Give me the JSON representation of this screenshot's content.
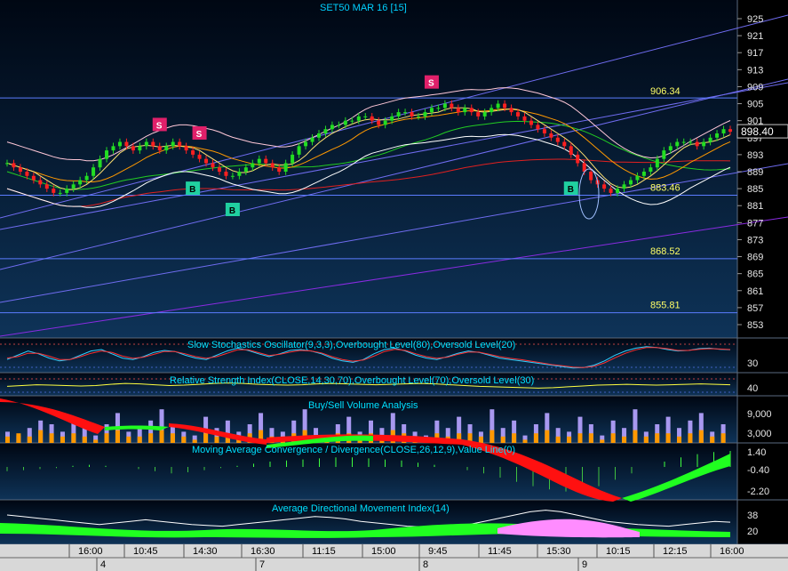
{
  "chart_data": [
    {
      "type": "candlestick",
      "title": "SET50 MAR 16   [15]",
      "last_price_label": "898.40",
      "ylim": [
        851,
        927
      ],
      "y_ticks": [
        "925",
        "921",
        "917",
        "913",
        "909",
        "905",
        "901",
        "897",
        "893",
        "889",
        "885",
        "881",
        "877",
        "873",
        "869",
        "865",
        "861",
        "857",
        "853"
      ],
      "closes": [
        891,
        890,
        889,
        888,
        887,
        886,
        885,
        884,
        884,
        885,
        886,
        887,
        888,
        890,
        892,
        894,
        895,
        896,
        895,
        894,
        895,
        896,
        895,
        894,
        895,
        896,
        895,
        894,
        893,
        892,
        891,
        890,
        889,
        888,
        888,
        889,
        890,
        891,
        892,
        891,
        890,
        889,
        891,
        893,
        895,
        896,
        897,
        898,
        899,
        900,
        900,
        901,
        901,
        902,
        902,
        901,
        900,
        901,
        902,
        903,
        903,
        902,
        902,
        903,
        904,
        904,
        905,
        904,
        903,
        904,
        903,
        902,
        903,
        904,
        905,
        904,
        903,
        902,
        901,
        900,
        899,
        898,
        897,
        896,
        895,
        893,
        891,
        889,
        887,
        886,
        885,
        884,
        885,
        886,
        887,
        888,
        889,
        890,
        892,
        894,
        895,
        896,
        896,
        896,
        895,
        896,
        897,
        898,
        899,
        898.4
      ],
      "horizontal_levels": [
        {
          "label": "906.34",
          "value": 906.34
        },
        {
          "label": "883.46",
          "value": 883.46
        },
        {
          "label": "868.52",
          "value": 868.52
        },
        {
          "label": "855.81",
          "value": 855.81
        }
      ],
      "signals": [
        {
          "label": "S",
          "index": 23
        },
        {
          "label": "S",
          "index": 29
        },
        {
          "label": "B",
          "index": 28
        },
        {
          "label": "B",
          "index": 34
        },
        {
          "label": "S",
          "index": 64
        },
        {
          "label": "B",
          "index": 85
        }
      ]
    },
    {
      "type": "line",
      "title": "Slow Stochastics Oscillator(9,3,3),Overbought Level(80),Oversold Level(20)",
      "y_ticks": [
        "30"
      ],
      "series": [
        {
          "values": [
            40,
            55,
            70,
            60,
            45,
            35,
            40,
            55,
            70,
            75,
            60,
            45,
            40,
            50,
            65,
            72,
            68,
            55,
            45,
            40,
            55,
            70,
            80,
            72,
            60,
            50,
            60,
            72,
            75,
            70,
            60,
            45,
            35,
            30,
            40,
            60,
            75,
            80,
            70,
            55,
            45,
            40,
            50,
            62,
            70,
            65,
            55,
            45,
            40,
            35,
            30,
            25,
            20,
            15,
            10,
            12,
            20,
            35,
            55,
            70,
            80,
            85,
            82,
            75,
            70,
            72,
            78,
            80,
            76,
            74
          ]
        },
        {
          "values": [
            45,
            50,
            62,
            62,
            52,
            40,
            40,
            50,
            62,
            70,
            65,
            52,
            44,
            48,
            58,
            68,
            68,
            60,
            50,
            44,
            50,
            62,
            74,
            74,
            64,
            54,
            58,
            66,
            72,
            70,
            63,
            50,
            40,
            34,
            38,
            52,
            68,
            76,
            72,
            60,
            50,
            44,
            48,
            58,
            66,
            66,
            58,
            50,
            44,
            40,
            34,
            28,
            22,
            18,
            13,
            12,
            16,
            28,
            46,
            62,
            74,
            82,
            82,
            78,
            72,
            72,
            76,
            78,
            77,
            75
          ]
        }
      ]
    },
    {
      "type": "line",
      "title": "Relative Strength Index(CLOSE,14,30,70),Overbought Level(70),Oversold Level(30)",
      "y_ticks": [
        "40"
      ],
      "series": [
        {
          "values": [
            48,
            50,
            52,
            51,
            50,
            49,
            50,
            53,
            55,
            54,
            52,
            50,
            51,
            53,
            55,
            56,
            55,
            53,
            52,
            51,
            52,
            54,
            55,
            54,
            53,
            52,
            53,
            54,
            55,
            54,
            52,
            50,
            48,
            47,
            46,
            45,
            44,
            45,
            47,
            49,
            51,
            52,
            53,
            52,
            51,
            52,
            53,
            54,
            53,
            52
          ]
        }
      ]
    },
    {
      "type": "bar",
      "title": "Buy/Sell Volume Analysis",
      "y_ticks": [
        "9,000",
        "3,000"
      ],
      "series": [
        {
          "name": "buy",
          "values": [
            3,
            2,
            4,
            6,
            5,
            3,
            7,
            4,
            2,
            5,
            8,
            3,
            4,
            6,
            9,
            5,
            3,
            2,
            7,
            4,
            6,
            3,
            5,
            8,
            4,
            3,
            6,
            9,
            4,
            2,
            5,
            7,
            3,
            6,
            4,
            8,
            5,
            3,
            2,
            6,
            4,
            7,
            5,
            3,
            9,
            4,
            6,
            2,
            5,
            8,
            4,
            3,
            7,
            5,
            2,
            6,
            4,
            9,
            3,
            5,
            7,
            4,
            6,
            8,
            3,
            5
          ]
        },
        {
          "name": "sell",
          "values": [
            2,
            3,
            2,
            4,
            3,
            2,
            3,
            2,
            1,
            3,
            4,
            2,
            2,
            3,
            4,
            3,
            2,
            1,
            3,
            2,
            3,
            2,
            3,
            4,
            2,
            2,
            3,
            4,
            2,
            1,
            3,
            3,
            2,
            3,
            2,
            4,
            3,
            2,
            1,
            3,
            2,
            3,
            3,
            2,
            4,
            2,
            3,
            1,
            3,
            4,
            2,
            2,
            3,
            3,
            1,
            3,
            2,
            4,
            2,
            3,
            3,
            2,
            3,
            4,
            2,
            3
          ]
        }
      ]
    },
    {
      "type": "bar",
      "title": "Moving Average Convergence / Divergence(CLOSE,26,12,9),Value Line(0)",
      "y_ticks": [
        "1.40",
        "-0.40",
        "-2.20"
      ],
      "series": [
        {
          "values": [
            -0.4,
            -0.3,
            -0.2,
            -0.1,
            0.1,
            0.2,
            0.1,
            0,
            -0.2,
            -0.4,
            -0.6,
            -0.5,
            -0.3,
            -0.1,
            0.1,
            0.3,
            0.5,
            0.6,
            0.7,
            0.8,
            0.9,
            0.9,
            0.8,
            0.7,
            0.6,
            0.4,
            0.2,
            0,
            -0.3,
            -0.6,
            -1.0,
            -1.4,
            -1.8,
            -2.1,
            -2.3,
            -2.2,
            -1.8,
            -1.2,
            -0.6,
            0,
            0.5,
            0.9,
            1.2,
            1.4,
            1.5
          ]
        }
      ]
    },
    {
      "type": "area",
      "title": "Average Directional Movement Index(14)",
      "y_ticks": [
        "38",
        "20"
      ],
      "series": [
        {
          "values": [
            30,
            28,
            26,
            24,
            22,
            20,
            18,
            20,
            22,
            24,
            22,
            20,
            18,
            17,
            16,
            18,
            20,
            22,
            24,
            26,
            28,
            27,
            25,
            22,
            20,
            18,
            16,
            15,
            14,
            16,
            18,
            22,
            26,
            30,
            34,
            36,
            34,
            30,
            26,
            22,
            20,
            18,
            17,
            16,
            18,
            20,
            22,
            21
          ]
        }
      ]
    }
  ],
  "time_axis": {
    "times": [
      "16:00",
      "10:45",
      "14:30",
      "16:30",
      "11:15",
      "15:00",
      "9:45",
      "11:45",
      "15:30",
      "10:15",
      "12:15",
      "16:00"
    ],
    "dates": [
      "4",
      "7",
      "8",
      "9"
    ]
  }
}
